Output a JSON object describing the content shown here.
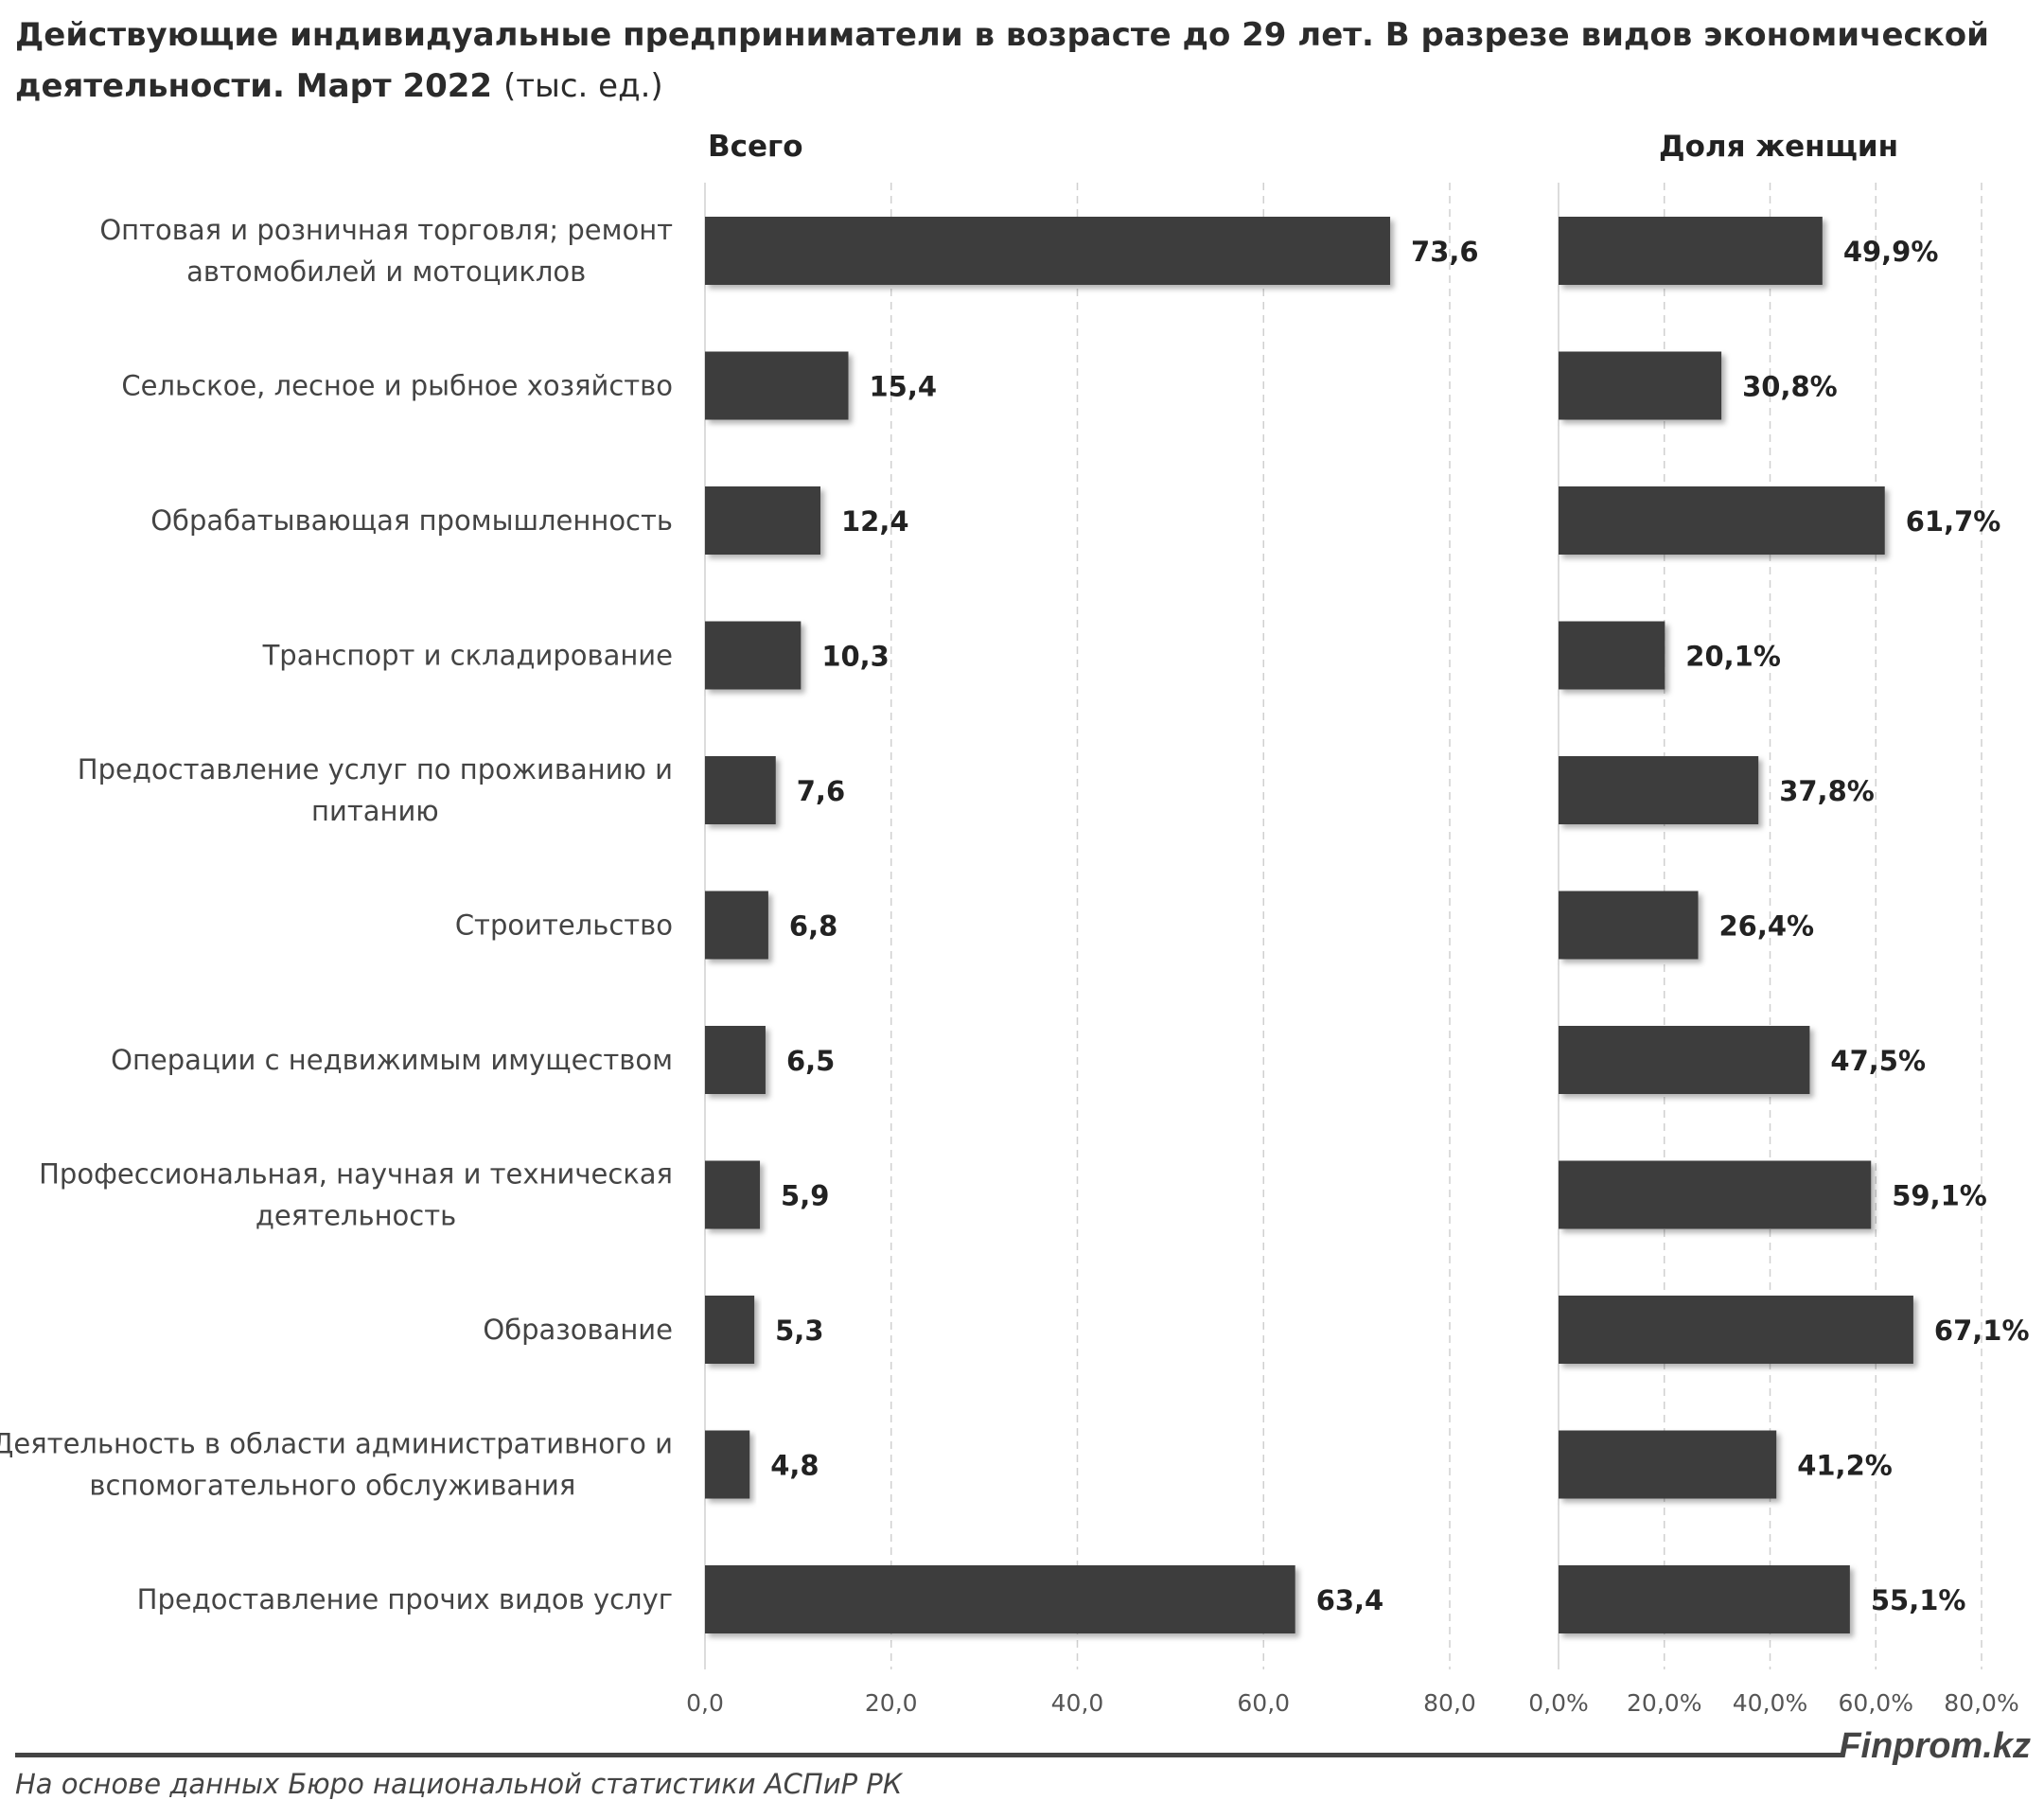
{
  "title": {
    "main": "Действующие индивидуальные предприниматели в возрасте до 29 лет. В разрезе видов экономической деятельности. Март 2022",
    "unit": "(тыс. ед.)"
  },
  "footer": {
    "source": "На основе данных Бюро национальной статистики АСПиР РК",
    "brand": "Finprom.kz"
  },
  "chart_data": [
    {
      "type": "bar",
      "orientation": "horizontal",
      "title": "Всего",
      "categories": [
        "Оптовая и розничная торговля; ремонт автомобилей и мотоциклов",
        "Сельское, лесное и рыбное хозяйство",
        "Обрабатывающая промышленность",
        "Транспорт и складирование",
        "Предоставление услуг по проживанию и питанию",
        "Строительство",
        "Операции с недвижимым имуществом",
        "Профессиональная, научная и техническая деятельность",
        "Образование",
        "Деятельность в области административного и вспомогательного обслуживания",
        "Предоставление прочих видов услуг"
      ],
      "category_lines": [
        [
          "Оптовая и розничная торговля; ремонт",
          "автомобилей и мотоциклов"
        ],
        [
          "Сельское, лесное и рыбное хозяйство"
        ],
        [
          "Обрабатывающая промышленность"
        ],
        [
          "Транспорт и складирование"
        ],
        [
          "Предоставление услуг по проживанию и",
          "питанию"
        ],
        [
          "Строительство"
        ],
        [
          "Операции с недвижимым имуществом"
        ],
        [
          "Профессиональная, научная и техническая",
          "деятельность"
        ],
        [
          "Образование"
        ],
        [
          "Деятельность в области административного и",
          "вспомогательного обслуживания"
        ],
        [
          "Предоставление прочих видов услуг"
        ]
      ],
      "values": [
        73.6,
        15.4,
        12.4,
        10.3,
        7.6,
        6.8,
        6.5,
        5.9,
        5.3,
        4.8,
        63.4
      ],
      "labels": [
        "73,6",
        "15,4",
        "12,4",
        "10,3",
        "7,6",
        "6,8",
        "6,5",
        "5,9",
        "5,3",
        "4,8",
        "63,4"
      ],
      "xlim": [
        0,
        80
      ],
      "ticks": [
        "0,0",
        "20,0",
        "40,0",
        "60,0",
        "80,0"
      ],
      "grid": true,
      "bar_color": "#3d3d3d"
    },
    {
      "type": "bar",
      "orientation": "horizontal",
      "title": "Доля женщин",
      "values": [
        49.9,
        30.8,
        61.7,
        20.1,
        37.8,
        26.4,
        47.5,
        59.1,
        67.1,
        41.2,
        55.1
      ],
      "labels": [
        "49,9%",
        "30,8%",
        "61,7%",
        "20,1%",
        "37,8%",
        "26,4%",
        "47,5%",
        "59,1%",
        "67,1%",
        "41,2%",
        "55,1%"
      ],
      "xlim": [
        0,
        80
      ],
      "ticks": [
        "0,0%",
        "20,0%",
        "40,0%",
        "60,0%",
        "80,0%"
      ],
      "grid": true,
      "bar_color": "#3d3d3d"
    }
  ]
}
